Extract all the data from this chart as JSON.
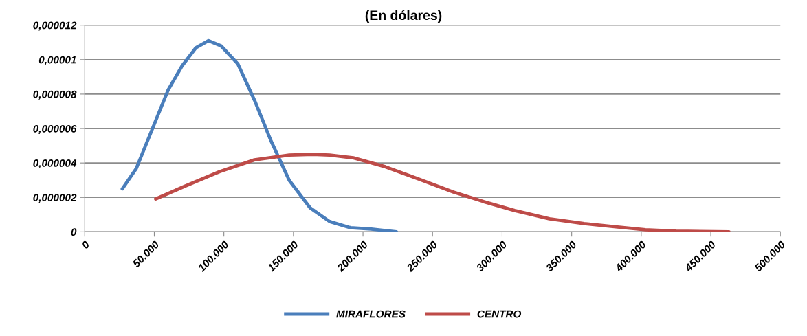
{
  "chart_data": {
    "type": "line",
    "title": "(En dólares)",
    "xlim": [
      0,
      500000
    ],
    "xticks": [
      {
        "value": 0,
        "label": "0"
      },
      {
        "value": 50000,
        "label": "50.000"
      },
      {
        "value": 100000,
        "label": "100.000"
      },
      {
        "value": 150000,
        "label": "150.000"
      },
      {
        "value": 200000,
        "label": "200.000"
      },
      {
        "value": 250000,
        "label": "250.000"
      },
      {
        "value": 300000,
        "label": "300.000"
      },
      {
        "value": 350000,
        "label": "350.000"
      },
      {
        "value": 400000,
        "label": "400.000"
      },
      {
        "value": 450000,
        "label": "450.000"
      },
      {
        "value": 500000,
        "label": "500.000"
      }
    ],
    "ylim": [
      0,
      1.2e-05
    ],
    "yticks": [
      {
        "value": 0,
        "label": "0"
      },
      {
        "value": 2e-06,
        "label": "0,000002"
      },
      {
        "value": 4e-06,
        "label": "0,000004"
      },
      {
        "value": 6e-06,
        "label": "0,000006"
      },
      {
        "value": 8e-06,
        "label": "0,000008"
      },
      {
        "value": 1e-05,
        "label": "0,00001"
      },
      {
        "value": 1.2e-05,
        "label": "0,000012"
      }
    ],
    "grid": "y",
    "legend": "bottom",
    "marker": "none",
    "line_style": "solid",
    "series": [
      {
        "name": "MIRAFLORES",
        "color": "#4a7ebb",
        "x": [
          27000,
          37000,
          48000,
          60000,
          70000,
          80000,
          89000,
          98000,
          110000,
          122000,
          134000,
          147000,
          162000,
          176000,
          191000,
          206000,
          224000
        ],
        "values": [
          2.5e-06,
          3.67e-06,
          5.86e-06,
          8.25e-06,
          9.64e-06,
          1.07e-05,
          1.11e-05,
          1.08e-05,
          9.76e-06,
          7.65e-06,
          5.26e-06,
          2.99e-06,
          1.39e-06,
          6e-07,
          2.4e-07,
          1.6e-07,
          0
        ]
      },
      {
        "name": "CENTRO",
        "color": "#be4b48",
        "x": [
          51000,
          72500,
          97000,
          122000,
          147000,
          164000,
          176000,
          193000,
          216000,
          240000,
          265000,
          287000,
          309000,
          334000,
          359000,
          383000,
          403000,
          425000,
          463000
        ],
        "values": [
          1.91e-06,
          2.67e-06,
          3.5e-06,
          4.18e-06,
          4.46e-06,
          4.5e-06,
          4.46e-06,
          4.3e-06,
          3.78e-06,
          3.07e-06,
          2.31e-06,
          1.75e-06,
          1.24e-06,
          7.6e-07,
          4.8e-07,
          2.8e-07,
          1.2e-07,
          4e-08,
          0
        ]
      }
    ]
  }
}
